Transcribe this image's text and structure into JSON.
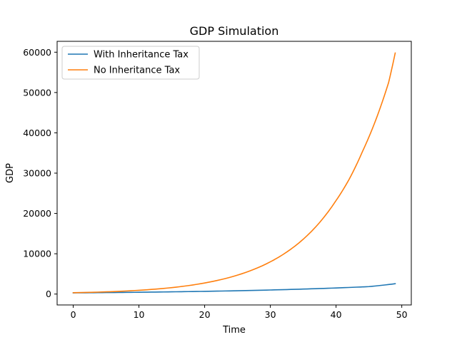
{
  "chart_data": {
    "type": "line",
    "title": "GDP Simulation",
    "xlabel": "Time",
    "ylabel": "GDP",
    "xlim": [
      -2.45,
      51.45
    ],
    "ylim": [
      -2700,
      62700
    ],
    "x_ticks": [
      0,
      10,
      20,
      30,
      40,
      50
    ],
    "y_ticks": [
      0,
      10000,
      20000,
      30000,
      40000,
      50000,
      60000
    ],
    "grid": false,
    "legend_position": "upper-left",
    "series": [
      {
        "name": "With Inheritance Tax",
        "color": "#1f77b4",
        "x": [
          0,
          5,
          10,
          15,
          20,
          25,
          30,
          35,
          40,
          45,
          49
        ],
        "values": [
          300,
          370,
          450,
          555,
          675,
          830,
          1010,
          1240,
          1515,
          1850,
          2570
        ]
      },
      {
        "name": "No Inheritance Tax",
        "color": "#ff7f0e",
        "x": [
          0,
          5,
          10,
          15,
          20,
          25,
          30,
          35,
          40,
          42,
          44,
          46,
          48,
          49
        ],
        "values": [
          330,
          550,
          940,
          1600,
          2750,
          4700,
          8000,
          13600,
          23200,
          28500,
          35300,
          43000,
          52500,
          59800
        ]
      }
    ]
  }
}
